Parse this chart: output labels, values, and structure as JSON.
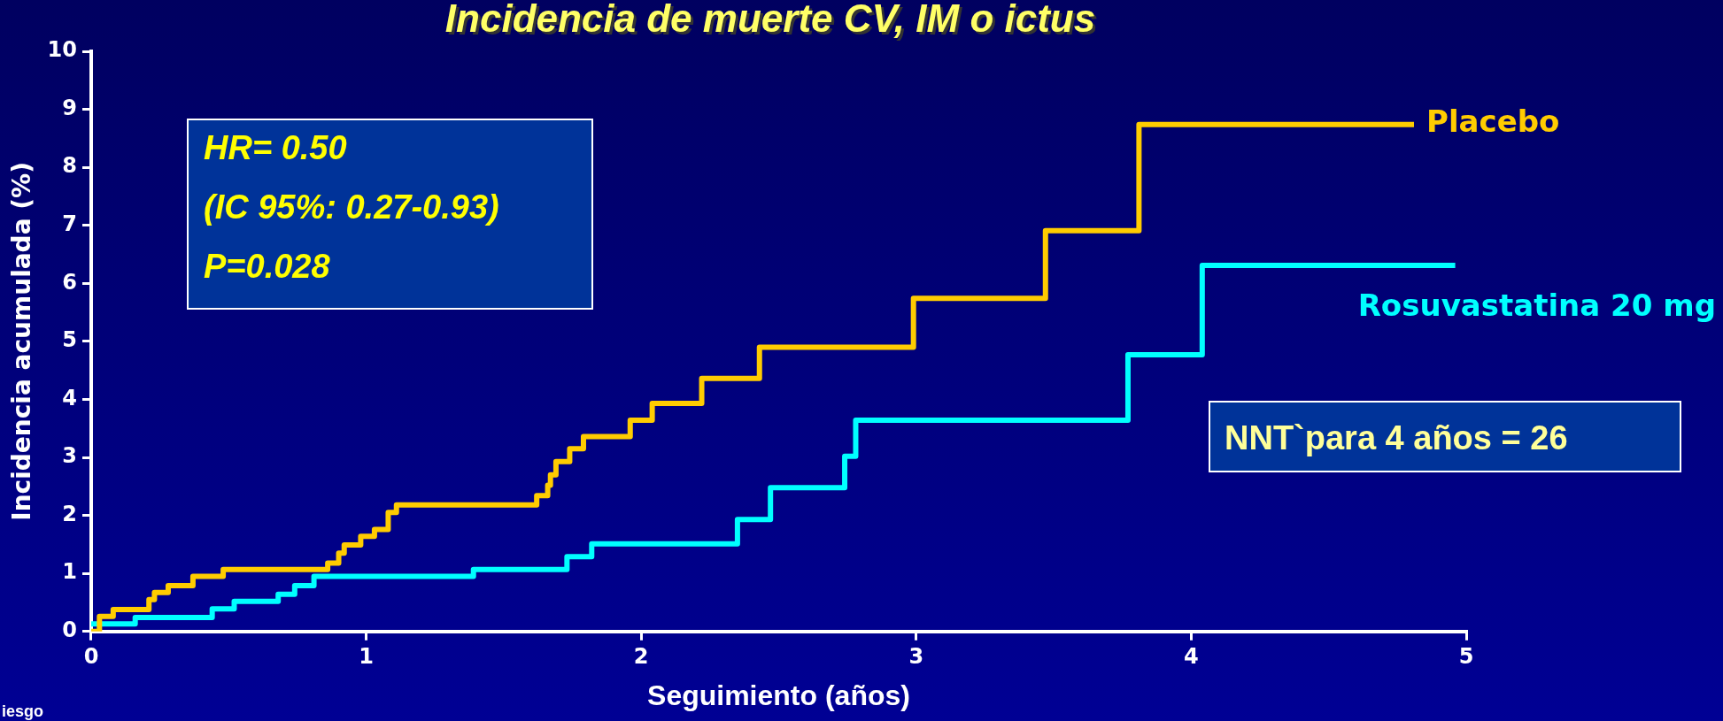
{
  "chart_data": {
    "type": "step",
    "title": "Incidencia de muerte CV, IM o ictus",
    "xlabel": "Seguimiento (años)",
    "ylabel": "Incidencia acumulada (%)",
    "xlim": [
      0,
      5
    ],
    "ylim": [
      0,
      10
    ],
    "xticks": [
      0,
      1,
      2,
      3,
      4,
      5
    ],
    "yticks": [
      0,
      1,
      2,
      3,
      4,
      5,
      6,
      7,
      8,
      9,
      10
    ],
    "marker": "none",
    "line_style": "solid",
    "series": [
      {
        "name": "Placebo",
        "color": "#ffcc00",
        "x": [
          0,
          0.03,
          0.08,
          0.21,
          0.23,
          0.28,
          0.37,
          0.48,
          0.86,
          0.9,
          0.92,
          0.98,
          1.03,
          1.08,
          1.11,
          1.62,
          1.66,
          1.67,
          1.69,
          1.74,
          1.79,
          1.96,
          2.04,
          2.22,
          2.43,
          2.99,
          3.47,
          3.81,
          4.81
        ],
        "values": [
          0,
          0.26,
          0.38,
          0.55,
          0.67,
          0.79,
          0.95,
          1.07,
          1.18,
          1.35,
          1.49,
          1.64,
          1.76,
          2.05,
          2.18,
          2.34,
          2.52,
          2.7,
          2.93,
          3.15,
          3.36,
          3.64,
          3.93,
          4.36,
          4.9,
          5.74,
          6.91,
          8.74,
          8.74
        ]
      },
      {
        "name": "Rosuvastatina 20 mg",
        "color": "#00ffff",
        "x": [
          0,
          0.16,
          0.44,
          0.52,
          0.68,
          0.74,
          0.81,
          1.39,
          1.73,
          1.82,
          2.35,
          2.47,
          2.74,
          2.78,
          3.77,
          4.04,
          4.96
        ],
        "values": [
          0.13,
          0.24,
          0.39,
          0.52,
          0.64,
          0.79,
          0.95,
          1.07,
          1.29,
          1.51,
          1.93,
          2.48,
          3.02,
          3.64,
          4.77,
          6.31,
          6.31
        ]
      }
    ],
    "annotations": [
      "HR= 0.50",
      "(IC 95%: 0.27-0.93)",
      "P=0.028",
      "NNT`para 4 años = 26",
      "iesgo"
    ]
  }
}
